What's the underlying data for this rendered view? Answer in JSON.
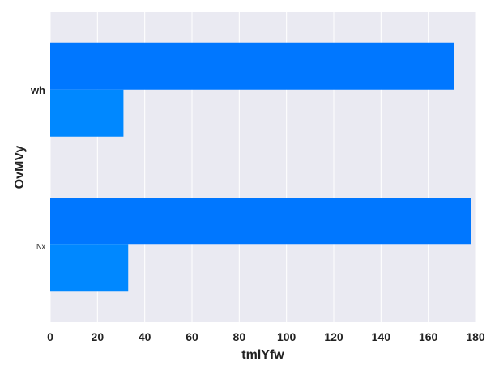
{
  "chart_data": {
    "type": "bar",
    "orientation": "horizontal",
    "categories": [
      "wh",
      "Nx"
    ],
    "category_label_sizes": [
      "normal",
      "small"
    ],
    "series": [
      {
        "values": [
          171,
          178
        ],
        "color": "#0077ff"
      },
      {
        "values": [
          31,
          33
        ],
        "color": "#0088ff"
      }
    ],
    "xlabel": "tmlYfw",
    "ylabel": "OvMVy",
    "xlim": [
      0,
      180
    ],
    "xticks": [
      0,
      20,
      40,
      60,
      80,
      100,
      120,
      140,
      160,
      180
    ],
    "grid": true,
    "background": "#eaeaf2",
    "gridline_color": "#ffffff"
  }
}
